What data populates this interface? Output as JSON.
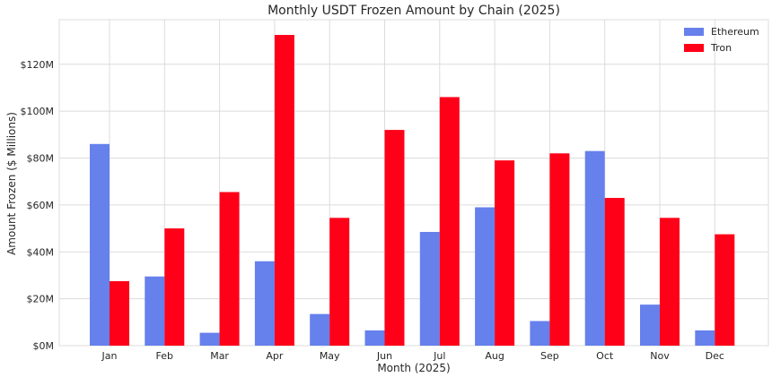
{
  "chart_data": {
    "type": "bar",
    "title": "Monthly USDT Frozen Amount by Chain (2025)",
    "xlabel": "Month (2025)",
    "ylabel": "Amount Frozen ($ Millions)",
    "categories": [
      "Jan",
      "Feb",
      "Mar",
      "Apr",
      "May",
      "Jun",
      "Jul",
      "Aug",
      "Sep",
      "Oct",
      "Nov",
      "Dec"
    ],
    "series": [
      {
        "name": "Ethereum",
        "color": "#6680ec",
        "values": [
          86,
          29.5,
          5.5,
          36,
          13.5,
          6.5,
          48.5,
          59,
          10.5,
          83,
          17.5,
          6.5
        ]
      },
      {
        "name": "Tron",
        "color": "#ff0019",
        "values": [
          27.5,
          50,
          65.5,
          132.5,
          54.5,
          92,
          106,
          79,
          82,
          63,
          54.5,
          47.5
        ]
      }
    ],
    "ylim": [
      0,
      139
    ],
    "yticks": [
      0,
      20,
      40,
      60,
      80,
      100,
      120
    ],
    "ytick_labels": [
      "$0M",
      "$20M",
      "$40M",
      "$60M",
      "$80M",
      "$100M",
      "$120M"
    ],
    "grid": true,
    "legend_position": "top-right"
  }
}
